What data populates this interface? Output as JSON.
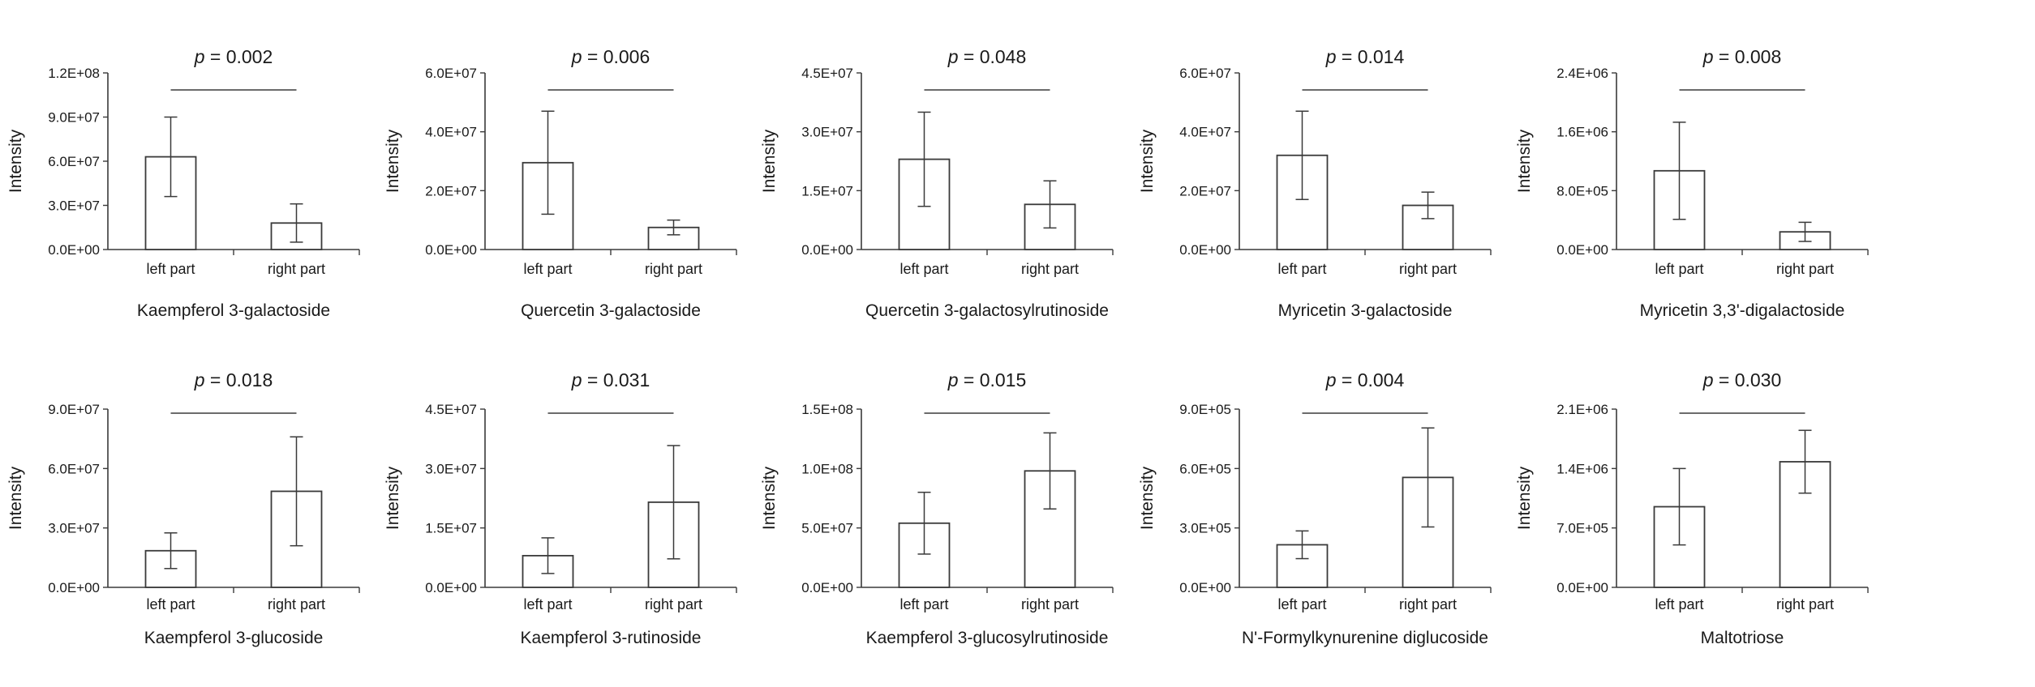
{
  "chart_data": [
    {
      "type": "bar",
      "title": "Kaempferol 3-galactoside",
      "ylabel": "Intensity",
      "categories": [
        "left part",
        "right part"
      ],
      "values": [
        63000000.0,
        18000000.0
      ],
      "errors": [
        27000000.0,
        13000000.0
      ],
      "ylim": [
        0,
        120000000.0
      ],
      "yticks": [
        "0.0E+00",
        "3.0E+07",
        "6.0E+07",
        "9.0E+07",
        "1.2E+08"
      ],
      "p_value": "0.002"
    },
    {
      "type": "bar",
      "title": "Quercetin 3-galactoside",
      "ylabel": "Intensity",
      "categories": [
        "left part",
        "right part"
      ],
      "values": [
        29500000.0,
        7500000.0
      ],
      "errors": [
        17500000.0,
        2500000.0
      ],
      "ylim": [
        0,
        60000000.0
      ],
      "yticks": [
        "0.0E+00",
        "2.0E+07",
        "4.0E+07",
        "6.0E+07"
      ],
      "p_value": "0.006"
    },
    {
      "type": "bar",
      "title": "Quercetin 3-galactosylrutinoside",
      "ylabel": "Intensity",
      "categories": [
        "left part",
        "right part"
      ],
      "values": [
        23000000.0,
        11500000.0
      ],
      "errors": [
        12000000.0,
        6000000.0
      ],
      "ylim": [
        0,
        45000000.0
      ],
      "yticks": [
        "0.0E+00",
        "1.5E+07",
        "3.0E+07",
        "4.5E+07"
      ],
      "p_value": "0.048"
    },
    {
      "type": "bar",
      "title": "Myricetin 3-galactoside",
      "ylabel": "Intensity",
      "categories": [
        "left part",
        "right part"
      ],
      "values": [
        32000000.0,
        15000000.0
      ],
      "errors": [
        15000000.0,
        4500000.0
      ],
      "ylim": [
        0,
        60000000.0
      ],
      "yticks": [
        "0.0E+00",
        "2.0E+07",
        "4.0E+07",
        "6.0E+07"
      ],
      "p_value": "0.014"
    },
    {
      "type": "bar",
      "title": "Myricetin 3,3'-digalactoside",
      "ylabel": "Intensity",
      "categories": [
        "left part",
        "right part"
      ],
      "values": [
        1070000.0,
        240000.0
      ],
      "errors": [
        660000.0,
        130000.0
      ],
      "ylim": [
        0,
        2400000.0
      ],
      "yticks": [
        "0.0E+00",
        "8.0E+05",
        "1.6E+06",
        "2.4E+06"
      ],
      "p_value": "0.008"
    },
    {
      "type": "bar",
      "title": "Kaempferol 3-glucoside",
      "ylabel": "Intensity",
      "categories": [
        "left part",
        "right part"
      ],
      "values": [
        18500000.0,
        48500000.0
      ],
      "errors": [
        9000000.0,
        27500000.0
      ],
      "ylim": [
        0,
        90000000.0
      ],
      "yticks": [
        "0.0E+00",
        "3.0E+07",
        "6.0E+07",
        "9.0E+07"
      ],
      "p_value": "0.018"
    },
    {
      "type": "bar",
      "title": "Kaempferol 3-rutinoside",
      "ylabel": "Intensity",
      "categories": [
        "left part",
        "right part"
      ],
      "values": [
        8000000.0,
        21500000.0
      ],
      "errors": [
        4500000.0,
        14300000.0
      ],
      "ylim": [
        0,
        45000000.0
      ],
      "yticks": [
        "0.0E+00",
        "1.5E+07",
        "3.0E+07",
        "4.5E+07"
      ],
      "p_value": "0.031"
    },
    {
      "type": "bar",
      "title": "Kaempferol 3-glucosylrutinoside",
      "ylabel": "Intensity",
      "categories": [
        "left part",
        "right part"
      ],
      "values": [
        54000000.0,
        98000000.0
      ],
      "errors": [
        26000000.0,
        32000000.0
      ],
      "ylim": [
        0,
        150000000.0
      ],
      "yticks": [
        "0.0E+00",
        "5.0E+07",
        "1.0E+08",
        "1.5E+08"
      ],
      "p_value": "0.015"
    },
    {
      "type": "bar",
      "title": "N'-Formylkynurenine diglucoside",
      "ylabel": "Intensity",
      "categories": [
        "left part",
        "right part"
      ],
      "values": [
        215000.0,
        555000.0
      ],
      "errors": [
        70000.0,
        250000.0
      ],
      "ylim": [
        0,
        900000.0
      ],
      "yticks": [
        "0.0E+00",
        "3.0E+05",
        "6.0E+05",
        "9.0E+05"
      ],
      "p_value": "0.004"
    },
    {
      "type": "bar",
      "title": "Maltotriose",
      "ylabel": "Intensity",
      "categories": [
        "left part",
        "right part"
      ],
      "values": [
        950000.0,
        1480000.0
      ],
      "errors": [
        450000.0,
        370000.0
      ],
      "ylim": [
        0,
        2100000.0
      ],
      "yticks": [
        "0.0E+00",
        "7.0E+05",
        "1.4E+06",
        "2.1E+06"
      ],
      "p_value": "0.030"
    }
  ]
}
